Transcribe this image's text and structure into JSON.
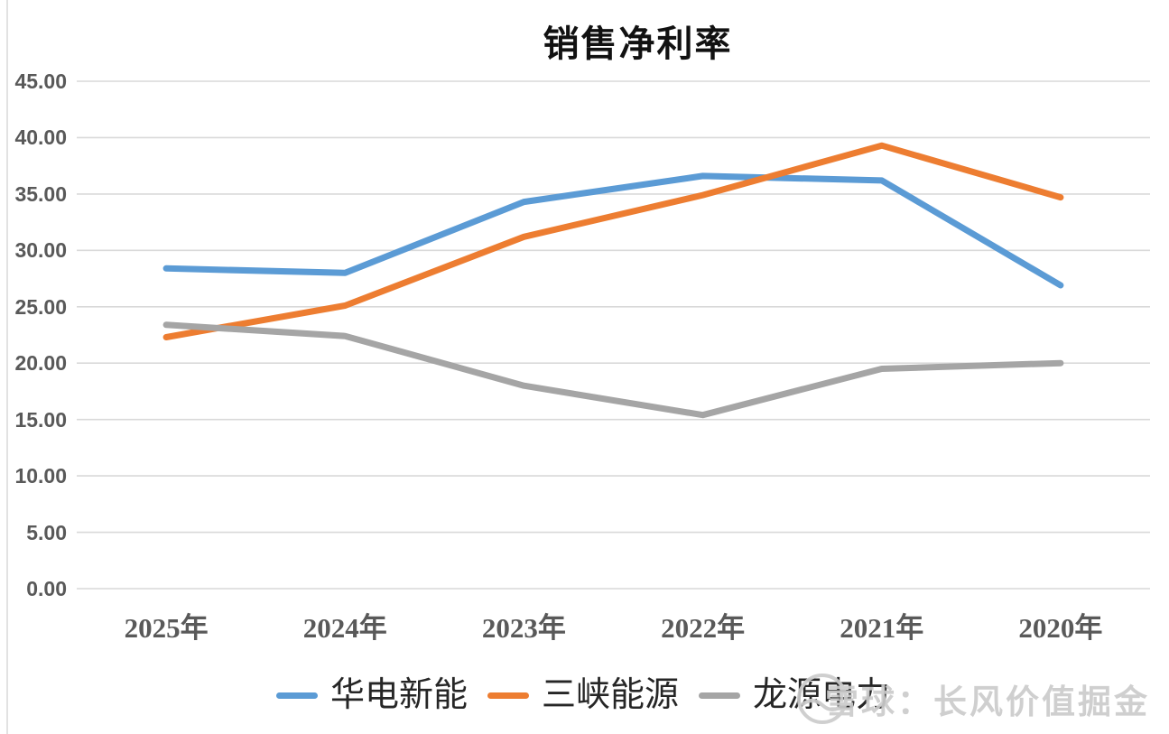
{
  "chart_data": {
    "type": "line",
    "title": "销售净利率",
    "categories": [
      "2025年",
      "2024年",
      "2023年",
      "2022年",
      "2021年",
      "2020年"
    ],
    "series": [
      {
        "name": "华电新能",
        "color": "#5B9BD5",
        "values": [
          28.4,
          28.0,
          34.3,
          36.6,
          36.2,
          26.9
        ]
      },
      {
        "name": "三峡能源",
        "color": "#ED7D31",
        "values": [
          22.3,
          25.1,
          31.2,
          34.9,
          39.3,
          34.7
        ]
      },
      {
        "name": "龙源电力",
        "color": "#A5A5A5",
        "values": [
          23.4,
          22.4,
          18.0,
          15.4,
          19.5,
          20.0
        ]
      }
    ],
    "ylim": [
      0,
      45
    ],
    "ytick_step": 5,
    "ytick_labels": [
      "45.00",
      "40.00",
      "35.00",
      "30.00",
      "25.00",
      "20.00",
      "15.00",
      "10.00",
      "5.00",
      "0.00"
    ],
    "grid": true,
    "gridline_color": "#d9d9d9",
    "legend_position": "bottom"
  },
  "watermark": {
    "text": "雪球：长风价值掘金",
    "icon": "xueqiu-snowball-logo",
    "color": "#c9c9c9"
  }
}
